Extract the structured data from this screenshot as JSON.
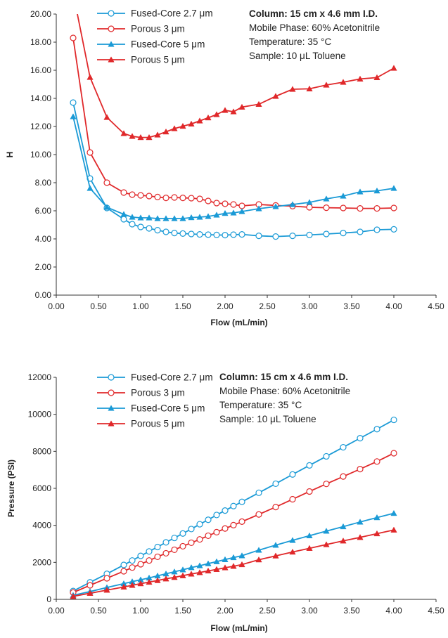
{
  "chart_data": [
    {
      "type": "line",
      "xlabel": "Flow (mL/min)",
      "ylabel": "H",
      "xlim": [
        0,
        4.5
      ],
      "ylim": [
        0,
        20
      ],
      "x_ticks": [
        "0.00",
        "0.50",
        "1.00",
        "1.50",
        "2.00",
        "2.50",
        "3.00",
        "3.50",
        "4.00",
        "4.50"
      ],
      "y_ticks": [
        "0.00",
        "2.00",
        "4.00",
        "6.00",
        "8.00",
        "10.00",
        "12.00",
        "14.00",
        "16.00",
        "18.00",
        "20.00"
      ],
      "grid": false,
      "legend_position": "top-left",
      "annotation": {
        "heading": "Column: 15 cm x 4.6 mm I.D.",
        "lines": [
          "Mobile Phase: 60% Acetonitrile",
          "Temperature: 35 °C",
          "Sample: 10 μL Toluene"
        ]
      },
      "series": [
        {
          "name": "Fused-Core 2.7 μm",
          "color": "#1a9ad6",
          "marker": "circle",
          "x": [
            0.2,
            0.4,
            0.6,
            0.8,
            0.9,
            1.0,
            1.1,
            1.2,
            1.3,
            1.4,
            1.5,
            1.6,
            1.7,
            1.8,
            1.9,
            2.0,
            2.1,
            2.2,
            2.4,
            2.6,
            2.8,
            3.0,
            3.2,
            3.4,
            3.6,
            3.8,
            4.0
          ],
          "y": [
            13.7,
            8.3,
            6.2,
            5.4,
            5.05,
            4.85,
            4.75,
            4.62,
            4.5,
            4.42,
            4.38,
            4.35,
            4.32,
            4.3,
            4.28,
            4.27,
            4.3,
            4.32,
            4.22,
            4.17,
            4.22,
            4.28,
            4.35,
            4.42,
            4.5,
            4.65,
            4.68
          ]
        },
        {
          "name": "Porous 3 μm",
          "color": "#e0282a",
          "marker": "circle",
          "x": [
            0.2,
            0.4,
            0.6,
            0.8,
            0.9,
            1.0,
            1.1,
            1.2,
            1.3,
            1.4,
            1.5,
            1.6,
            1.7,
            1.8,
            1.9,
            2.0,
            2.1,
            2.2,
            2.4,
            2.6,
            2.8,
            3.0,
            3.2,
            3.4,
            3.6,
            3.8,
            4.0
          ],
          "y": [
            18.3,
            10.15,
            8.0,
            7.3,
            7.15,
            7.1,
            7.05,
            6.98,
            6.92,
            6.95,
            6.92,
            6.9,
            6.85,
            6.7,
            6.55,
            6.5,
            6.45,
            6.35,
            6.45,
            6.38,
            6.33,
            6.25,
            6.22,
            6.2,
            6.17,
            6.17,
            6.2
          ]
        },
        {
          "name": "Fused-Core 5 μm",
          "color": "#1a9ad6",
          "marker": "triangle",
          "x": [
            0.2,
            0.4,
            0.6,
            0.8,
            0.9,
            1.0,
            1.1,
            1.2,
            1.3,
            1.4,
            1.5,
            1.6,
            1.7,
            1.8,
            1.9,
            2.0,
            2.1,
            2.2,
            2.4,
            2.6,
            2.8,
            3.0,
            3.2,
            3.4,
            3.6,
            3.8,
            4.0
          ],
          "y": [
            12.7,
            7.6,
            6.25,
            5.75,
            5.55,
            5.5,
            5.5,
            5.45,
            5.45,
            5.45,
            5.45,
            5.52,
            5.55,
            5.6,
            5.7,
            5.82,
            5.85,
            5.95,
            6.15,
            6.3,
            6.45,
            6.6,
            6.85,
            7.05,
            7.35,
            7.42,
            7.6
          ]
        },
        {
          "name": "Porous 5 μm",
          "color": "#e0282a",
          "marker": "triangle",
          "x": [
            0.2,
            0.4,
            0.6,
            0.8,
            0.9,
            1.0,
            1.1,
            1.2,
            1.3,
            1.4,
            1.5,
            1.6,
            1.7,
            1.8,
            1.9,
            2.0,
            2.1,
            2.2,
            2.4,
            2.6,
            2.8,
            3.0,
            3.2,
            3.4,
            3.6,
            3.8,
            4.0
          ],
          "y": [
            21.5,
            15.5,
            12.65,
            11.5,
            11.3,
            11.22,
            11.22,
            11.4,
            11.62,
            11.85,
            12.02,
            12.18,
            12.4,
            12.62,
            12.85,
            13.15,
            13.05,
            13.38,
            13.58,
            14.15,
            14.65,
            14.68,
            14.95,
            15.15,
            15.38,
            15.48,
            16.15
          ]
        }
      ]
    },
    {
      "type": "line",
      "xlabel": "Flow (mL/min)",
      "ylabel": "Pressure (PSI)",
      "xlim": [
        0,
        4.5
      ],
      "ylim": [
        0,
        12000
      ],
      "x_ticks": [
        "0.00",
        "0.50",
        "1.00",
        "1.50",
        "2.00",
        "2.50",
        "3.00",
        "3.50",
        "4.00",
        "4.50"
      ],
      "y_ticks": [
        "0",
        "2000",
        "4000",
        "6000",
        "8000",
        "10000",
        "12000"
      ],
      "grid": false,
      "legend_position": "top-left",
      "annotation": {
        "heading": "Column: 15 cm x 4.6 mm I.D.",
        "lines": [
          "Mobile Phase: 60% Acetonitrile",
          "Temperature: 35 °C",
          "Sample: 10 μL Toluene"
        ]
      },
      "series": [
        {
          "name": "Fused-Core 2.7 μm",
          "color": "#1a9ad6",
          "marker": "circle",
          "x": [
            0.2,
            0.4,
            0.6,
            0.8,
            0.9,
            1.0,
            1.1,
            1.2,
            1.3,
            1.4,
            1.5,
            1.6,
            1.7,
            1.8,
            1.9,
            2.0,
            2.1,
            2.2,
            2.4,
            2.6,
            2.8,
            3.0,
            3.2,
            3.4,
            3.6,
            3.8,
            4.0
          ],
          "y": [
            450,
            920,
            1380,
            1860,
            2100,
            2350,
            2590,
            2830,
            3080,
            3320,
            3560,
            3800,
            4060,
            4300,
            4560,
            4800,
            5040,
            5270,
            5760,
            6250,
            6750,
            7240,
            7730,
            8220,
            8710,
            9200,
            9700
          ]
        },
        {
          "name": "Porous 3 μm",
          "color": "#e0282a",
          "marker": "circle",
          "x": [
            0.2,
            0.4,
            0.6,
            0.8,
            0.9,
            1.0,
            1.1,
            1.2,
            1.3,
            1.4,
            1.5,
            1.6,
            1.7,
            1.8,
            1.9,
            2.0,
            2.1,
            2.2,
            2.4,
            2.6,
            2.8,
            3.0,
            3.2,
            3.4,
            3.6,
            3.8,
            4.0
          ],
          "y": [
            370,
            760,
            1140,
            1520,
            1720,
            1900,
            2100,
            2300,
            2490,
            2680,
            2870,
            3060,
            3240,
            3440,
            3630,
            3830,
            4010,
            4200,
            4590,
            4990,
            5410,
            5830,
            6240,
            6640,
            7040,
            7450,
            7900
          ]
        },
        {
          "name": "Fused-Core 5 μm",
          "color": "#1a9ad6",
          "marker": "triangle",
          "x": [
            0.2,
            0.4,
            0.6,
            0.8,
            0.9,
            1.0,
            1.1,
            1.2,
            1.3,
            1.4,
            1.5,
            1.6,
            1.7,
            1.8,
            1.9,
            2.0,
            2.1,
            2.2,
            2.4,
            2.6,
            2.8,
            3.0,
            3.2,
            3.4,
            3.6,
            3.8,
            4.0
          ],
          "y": [
            220,
            420,
            640,
            850,
            960,
            1060,
            1160,
            1270,
            1380,
            1490,
            1600,
            1720,
            1820,
            1930,
            2040,
            2150,
            2260,
            2360,
            2660,
            2930,
            3190,
            3440,
            3690,
            3930,
            4180,
            4420,
            4650
          ]
        },
        {
          "name": "Porous 5 μm",
          "color": "#e0282a",
          "marker": "triangle",
          "x": [
            0.2,
            0.4,
            0.6,
            0.8,
            0.9,
            1.0,
            1.1,
            1.2,
            1.3,
            1.4,
            1.5,
            1.6,
            1.7,
            1.8,
            1.9,
            2.0,
            2.1,
            2.2,
            2.4,
            2.6,
            2.8,
            3.0,
            3.2,
            3.4,
            3.6,
            3.8,
            4.0
          ],
          "y": [
            160,
            330,
            500,
            670,
            760,
            850,
            930,
            1020,
            1110,
            1190,
            1280,
            1370,
            1450,
            1540,
            1620,
            1710,
            1790,
            1880,
            2140,
            2350,
            2560,
            2760,
            2960,
            3160,
            3350,
            3550,
            3750
          ]
        }
      ]
    }
  ]
}
